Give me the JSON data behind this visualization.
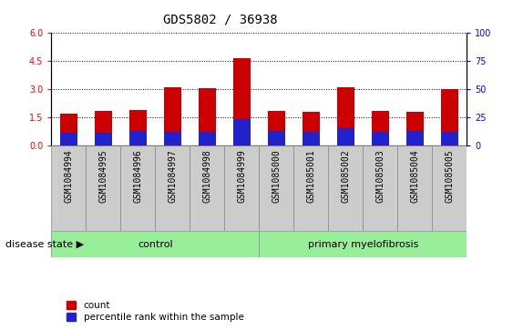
{
  "title": "GDS5802 / 36938",
  "categories": [
    "GSM1084994",
    "GSM1084995",
    "GSM1084996",
    "GSM1084997",
    "GSM1084998",
    "GSM1084999",
    "GSM1085000",
    "GSM1085001",
    "GSM1085002",
    "GSM1085003",
    "GSM1085004",
    "GSM1085005"
  ],
  "count_values": [
    1.7,
    1.85,
    1.9,
    3.1,
    3.05,
    4.65,
    1.85,
    1.8,
    3.1,
    1.85,
    1.8,
    3.0
  ],
  "percentile_values": [
    11.0,
    11.0,
    13.0,
    12.0,
    12.0,
    23.0,
    13.0,
    12.0,
    15.0,
    12.0,
    13.0,
    12.0
  ],
  "ylim_left": [
    0,
    6
  ],
  "ylim_right": [
    0,
    100
  ],
  "yticks_left": [
    0,
    1.5,
    3.0,
    4.5,
    6.0
  ],
  "yticks_right": [
    0,
    25,
    50,
    75,
    100
  ],
  "n_control": 6,
  "n_disease": 6,
  "control_label": "control",
  "disease_label": "primary myelofibrosis",
  "disease_state_label": "disease state",
  "bar_color_red": "#cc0000",
  "bar_color_blue": "#2222cc",
  "bar_width": 0.5,
  "background_color": "#ffffff",
  "tick_area_color": "#cccccc",
  "group_box_color": "#99ee99",
  "legend_count": "count",
  "legend_percentile": "percentile rank within the sample",
  "title_fontsize": 10,
  "tick_fontsize": 7
}
